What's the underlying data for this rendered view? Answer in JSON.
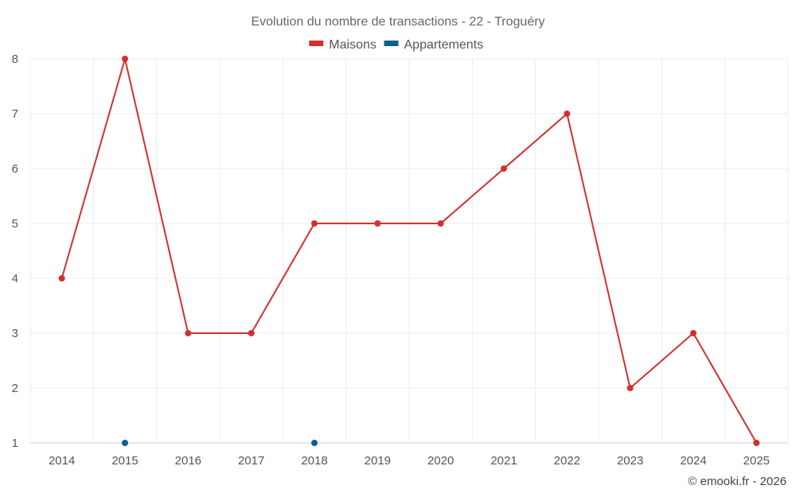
{
  "chart_data": {
    "type": "line",
    "title": "Evolution du nombre de transactions - 22 - Troguéry",
    "categories": [
      "2014",
      "2015",
      "2016",
      "2017",
      "2018",
      "2019",
      "2020",
      "2021",
      "2022",
      "2023",
      "2024",
      "2025"
    ],
    "ylim": [
      1,
      8
    ],
    "yticks": [
      "1",
      "2",
      "3",
      "4",
      "5",
      "6",
      "7",
      "8"
    ],
    "grid": true,
    "legend_position": "top-center",
    "series": [
      {
        "name": "Maisons",
        "color": "#d32f2f",
        "values": [
          4,
          8,
          3,
          3,
          5,
          5,
          5,
          6,
          7,
          2,
          3,
          1
        ]
      },
      {
        "name": "Appartements",
        "color": "#0d5f96",
        "values": [
          null,
          1,
          null,
          null,
          1,
          null,
          null,
          null,
          null,
          null,
          null,
          null
        ]
      }
    ]
  },
  "credit": "© emooki.fr - 2026"
}
